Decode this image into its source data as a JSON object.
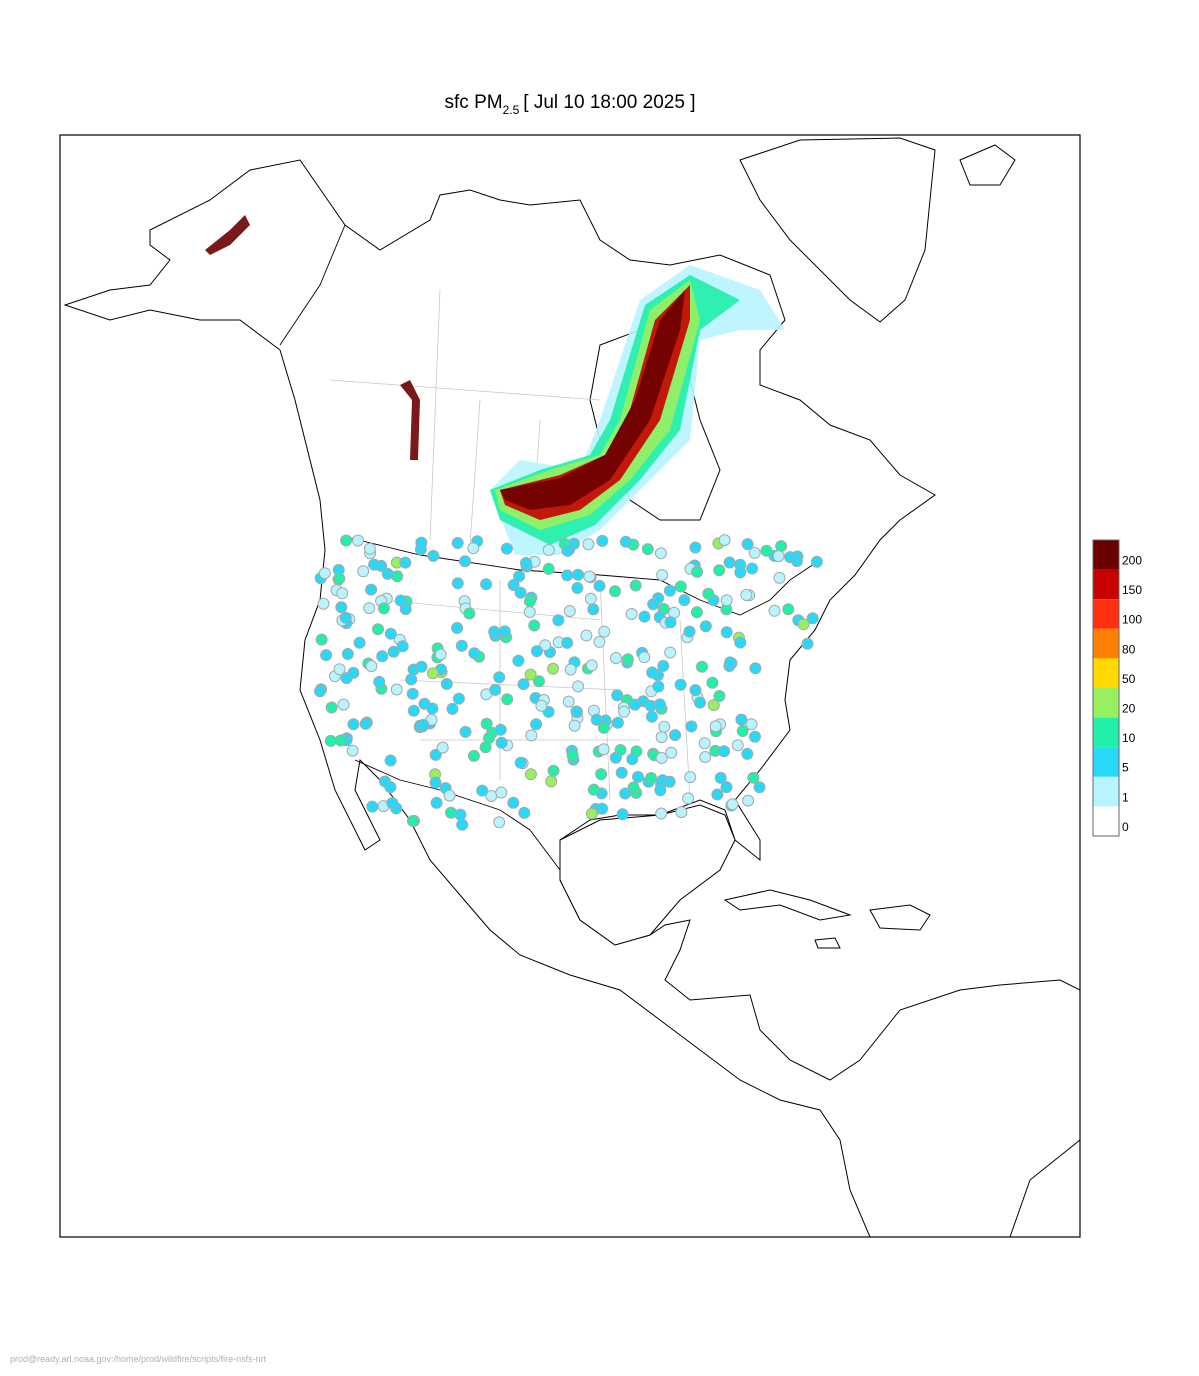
{
  "title": {
    "prefix": "sfc PM",
    "subscript": "2.5",
    "suffix": "[ Jul 10 18:00 2025 ]"
  },
  "legend": {
    "levels": [
      {
        "label": 200,
        "color": "#6b0000"
      },
      {
        "label": 150,
        "color": "#c80000"
      },
      {
        "label": 100,
        "color": "#ff3010"
      },
      {
        "label": 80,
        "color": "#ff8000"
      },
      {
        "label": 50,
        "color": "#ffd800"
      },
      {
        "label": 20,
        "color": "#98f060"
      },
      {
        "label": 10,
        "color": "#20f0a8"
      },
      {
        "label": 5,
        "color": "#28d8f8"
      },
      {
        "label": 1,
        "color": "#b8f4ff"
      },
      {
        "label": 0,
        "color": "#ffffff"
      }
    ]
  },
  "footer": "prod@ready.arl.noaa.gov:/home/prod/wildfire/scripts/fire-nsfs-nrt"
}
